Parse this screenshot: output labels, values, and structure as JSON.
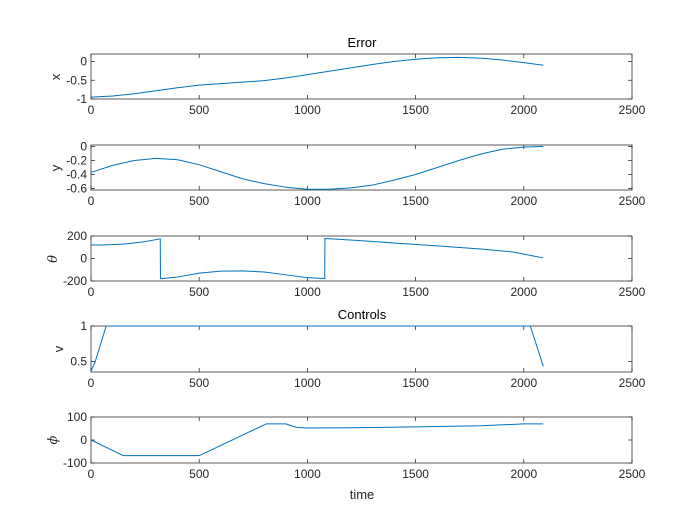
{
  "figure": {
    "background": "#ffffff",
    "axis_color": "#262626",
    "line_color": "#0072BD"
  },
  "chart_data": [
    {
      "type": "line",
      "title": "Error",
      "ylabel": "x",
      "xlim": [
        0,
        2500
      ],
      "ylim": [
        -1,
        0.2
      ],
      "xticks": [
        0,
        500,
        1000,
        1500,
        2000,
        2500
      ],
      "yticks": [
        0,
        -0.5,
        -1
      ],
      "ytick_labels": [
        "0",
        "-0.5",
        "-1"
      ],
      "series": [
        {
          "x": [
            0,
            100,
            200,
            300,
            400,
            500,
            600,
            700,
            800,
            900,
            1000,
            1100,
            1200,
            1300,
            1400,
            1500,
            1600,
            1700,
            1800,
            1900,
            2000,
            2090
          ],
          "y": [
            -0.95,
            -0.92,
            -0.86,
            -0.78,
            -0.7,
            -0.63,
            -0.59,
            -0.55,
            -0.51,
            -0.44,
            -0.35,
            -0.26,
            -0.17,
            -0.08,
            0.0,
            0.06,
            0.1,
            0.11,
            0.09,
            0.04,
            -0.03,
            -0.1
          ]
        }
      ]
    },
    {
      "type": "line",
      "title": "",
      "ylabel": "y",
      "xlim": [
        0,
        2500
      ],
      "ylim": [
        -0.62,
        0.02
      ],
      "xticks": [
        0,
        500,
        1000,
        1500,
        2000,
        2500
      ],
      "yticks": [
        0,
        -0.2,
        -0.4,
        -0.6
      ],
      "ytick_labels": [
        "0",
        "-0.2",
        "-0.4",
        "-0.6"
      ],
      "series": [
        {
          "x": [
            0,
            100,
            200,
            300,
            400,
            500,
            600,
            700,
            800,
            900,
            1000,
            1100,
            1200,
            1300,
            1400,
            1500,
            1600,
            1700,
            1800,
            1900,
            2000,
            2090
          ],
          "y": [
            -0.37,
            -0.27,
            -0.2,
            -0.17,
            -0.19,
            -0.26,
            -0.36,
            -0.46,
            -0.53,
            -0.58,
            -0.61,
            -0.61,
            -0.59,
            -0.55,
            -0.48,
            -0.4,
            -0.3,
            -0.2,
            -0.11,
            -0.04,
            -0.01,
            0.0
          ]
        }
      ]
    },
    {
      "type": "line",
      "title": "",
      "ylabel": "θ",
      "xlim": [
        0,
        2500
      ],
      "ylim": [
        -200,
        200
      ],
      "xticks": [
        0,
        500,
        1000,
        1500,
        2000,
        2500
      ],
      "yticks": [
        200,
        0,
        -200
      ],
      "ytick_labels": [
        "200",
        "0",
        "-200"
      ],
      "series": [
        {
          "x": [
            0,
            50,
            150,
            250,
            320,
            321,
            400,
            500,
            600,
            700,
            800,
            900,
            1000,
            1080,
            1081,
            1200,
            1400,
            1600,
            1800,
            1950,
            2050,
            2090
          ],
          "y": [
            120,
            120,
            128,
            150,
            175,
            -180,
            -165,
            -130,
            -112,
            -110,
            -120,
            -145,
            -170,
            -178,
            178,
            165,
            138,
            112,
            85,
            58,
            20,
            5
          ]
        }
      ]
    },
    {
      "type": "line",
      "title": "Controls",
      "ylabel": "v",
      "xlim": [
        0,
        2500
      ],
      "ylim": [
        0.35,
        1.0
      ],
      "xticks": [
        0,
        500,
        1000,
        1500,
        2000,
        2500
      ],
      "yticks": [
        1,
        0.5
      ],
      "ytick_labels": [
        "1",
        "0.5"
      ],
      "series": [
        {
          "x": [
            0,
            20,
            70,
            2030,
            2090
          ],
          "y": [
            0.36,
            0.5,
            1.0,
            1.0,
            0.43
          ]
        }
      ]
    },
    {
      "type": "line",
      "title": "",
      "ylabel": "ϕ",
      "xlim": [
        0,
        2500
      ],
      "ylim": [
        -100,
        100
      ],
      "xticks": [
        0,
        500,
        1000,
        1500,
        2000,
        2500
      ],
      "yticks": [
        100,
        0,
        -100
      ],
      "ytick_labels": [
        "100",
        "0",
        "-100"
      ],
      "xlabel": "time",
      "series": [
        {
          "x": [
            0,
            150,
            500,
            810,
            900,
            950,
            1000,
            1200,
            1500,
            1800,
            2000,
            2090
          ],
          "y": [
            0,
            -68,
            -68,
            70,
            70,
            55,
            52,
            53,
            57,
            62,
            70,
            70
          ]
        }
      ]
    }
  ]
}
